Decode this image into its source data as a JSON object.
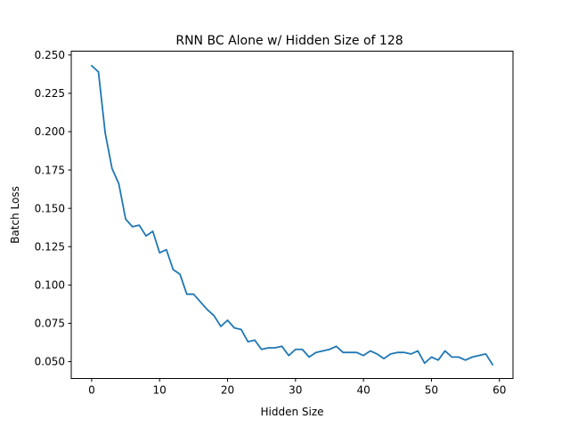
{
  "chart_data": {
    "type": "line",
    "title": "RNN BC Alone w/ Hidden Size of 128",
    "xlabel": "Hidden Size",
    "ylabel": "Batch Loss",
    "xlim": [
      -3,
      62
    ],
    "ylim": [
      0.039,
      0.2525
    ],
    "xticks": [
      0,
      10,
      20,
      30,
      40,
      50,
      60
    ],
    "xtick_labels": [
      "0",
      "10",
      "20",
      "30",
      "40",
      "50",
      "60"
    ],
    "yticks": [
      0.05,
      0.075,
      0.1,
      0.125,
      0.15,
      0.175,
      0.2,
      0.225,
      0.25
    ],
    "ytick_labels": [
      "0.050",
      "0.075",
      "0.100",
      "0.125",
      "0.150",
      "0.175",
      "0.200",
      "0.225",
      "0.250"
    ],
    "grid": false,
    "series": [
      {
        "color": "#1f77b4",
        "x": [
          0,
          1,
          2,
          3,
          4,
          5,
          6,
          7,
          8,
          9,
          10,
          11,
          12,
          13,
          14,
          15,
          16,
          17,
          18,
          19,
          20,
          21,
          22,
          23,
          24,
          25,
          26,
          27,
          28,
          29,
          30,
          31,
          32,
          33,
          34,
          35,
          36,
          37,
          38,
          39,
          40,
          41,
          42,
          43,
          44,
          45,
          46,
          47,
          48,
          49,
          50,
          51,
          52,
          53,
          54,
          55,
          56,
          57,
          58,
          59
        ],
        "values": [
          0.243,
          0.239,
          0.199,
          0.176,
          0.166,
          0.143,
          0.138,
          0.139,
          0.132,
          0.135,
          0.121,
          0.123,
          0.11,
          0.107,
          0.094,
          0.094,
          0.089,
          0.084,
          0.08,
          0.073,
          0.077,
          0.072,
          0.071,
          0.063,
          0.064,
          0.058,
          0.059,
          0.059,
          0.06,
          0.054,
          0.058,
          0.058,
          0.053,
          0.056,
          0.057,
          0.058,
          0.06,
          0.056,
          0.056,
          0.056,
          0.054,
          0.057,
          0.055,
          0.052,
          0.055,
          0.056,
          0.056,
          0.055,
          0.057,
          0.049,
          0.053,
          0.051,
          0.057,
          0.053,
          0.053,
          0.051,
          0.053,
          0.054,
          0.055,
          0.048
        ]
      }
    ]
  }
}
